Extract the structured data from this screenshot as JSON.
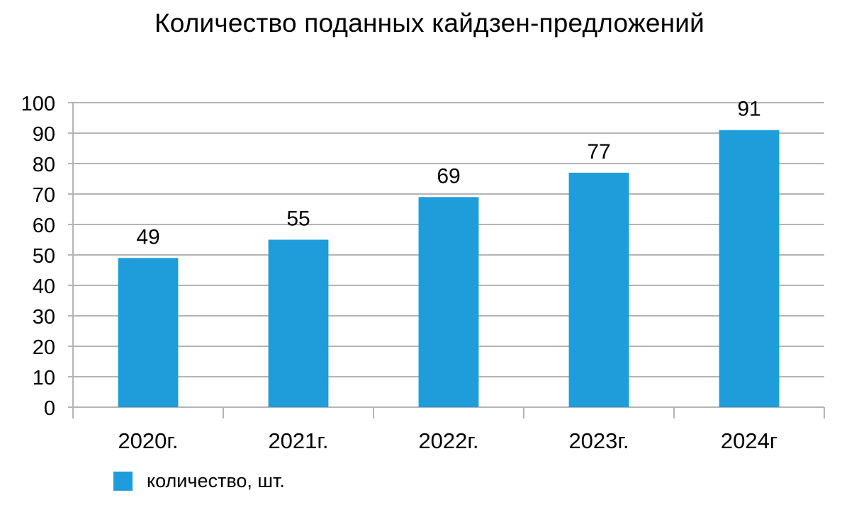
{
  "chart_data": {
    "type": "bar",
    "title": "Количество поданных кайдзен-предложений",
    "categories": [
      "2020г.",
      "2021г.",
      "2022г.",
      "2023г.",
      "2024г"
    ],
    "series": [
      {
        "name": "количество, шт.",
        "values": [
          49,
          55,
          69,
          77,
          91
        ],
        "color": "#1f9cda"
      }
    ],
    "xlabel": "",
    "ylabel": "",
    "ylim": [
      0,
      100
    ],
    "yticks": [
      0,
      10,
      20,
      30,
      40,
      50,
      60,
      70,
      80,
      90,
      100
    ],
    "grid": true,
    "legend": "bottom-left",
    "data_labels": true
  },
  "colors": {
    "bar": "#1f9cda",
    "grid": "#b4b4b4",
    "text": "#000000"
  }
}
